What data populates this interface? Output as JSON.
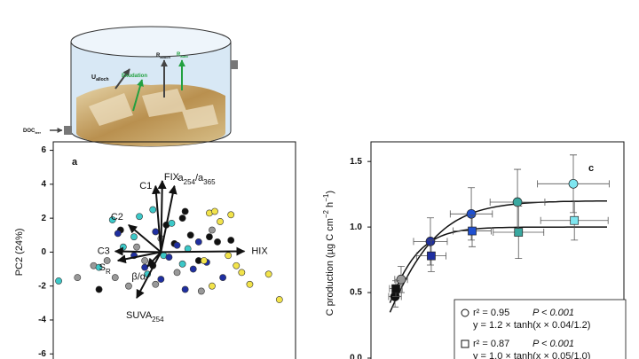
{
  "diagram": {
    "labels": [
      {
        "base": "U",
        "sub": "alloch"
      },
      {
        "base": "Exudation",
        "sub": ""
      },
      {
        "base": "R",
        "sub": "alloch"
      },
      {
        "base": "R",
        "sub": "auto"
      },
      {
        "base": "DOC",
        "sub": "terr"
      }
    ]
  },
  "chart_data": [
    {
      "type": "biplot",
      "panel": "a",
      "y_label": "PC2 (24%)",
      "xlim": [
        -4,
        5
      ],
      "ylim": [
        -6.3,
        6.5
      ],
      "yticks": [
        6,
        4,
        2,
        0,
        -2,
        -4,
        -6
      ],
      "series": [
        {
          "color": "#111111",
          "x": [
            0.8,
            1.1,
            -1.5,
            0.5,
            2.6,
            1.8,
            -0.3,
            0.2,
            1.4,
            -2.3,
            2.1,
            0.9
          ],
          "values": [
            2.0,
            1.0,
            1.3,
            0.5,
            0.7,
            0.9,
            -0.8,
            1.6,
            -0.5,
            -2.2,
            0.6,
            2.4
          ]
        },
        {
          "color": "#999999",
          "x": [
            -2.5,
            -1.7,
            -0.6,
            0.0,
            -1.2,
            1.5,
            -0.9,
            -2.0,
            0.6,
            -0.2,
            -3.1,
            1.9
          ],
          "values": [
            -0.8,
            -1.5,
            -0.5,
            0.8,
            -2.0,
            -2.3,
            0.3,
            -0.5,
            -1.2,
            -1.9,
            -1.5,
            1.3
          ]
        },
        {
          "color": "#3cc8c8",
          "x": [
            -0.3,
            -1.0,
            0.4,
            -1.4,
            -2.3,
            0.8,
            -0.5,
            -3.8,
            -1.8,
            0.1,
            1.0,
            -0.8
          ],
          "values": [
            2.5,
            0.9,
            1.7,
            0.3,
            -0.9,
            -0.7,
            -1.3,
            -1.7,
            1.9,
            -0.2,
            0.2,
            2.1
          ]
        },
        {
          "color": "#1f2fa0",
          "x": [
            -0.2,
            0.3,
            1.2,
            -1.0,
            0.6,
            -0.6,
            1.7,
            0.9,
            0.0,
            2.3,
            -1.6,
            1.4
          ],
          "values": [
            1.2,
            -0.3,
            -1.0,
            -0.2,
            0.4,
            -0.9,
            -0.6,
            -2.2,
            -1.6,
            -1.5,
            1.1,
            0.6
          ]
        },
        {
          "color": "#f2e34a",
          "x": [
            1.8,
            2.2,
            2.6,
            1.6,
            3.0,
            4.0,
            4.4,
            2.5,
            1.9,
            3.3,
            2.0,
            2.8
          ],
          "values": [
            2.3,
            1.8,
            2.2,
            -0.5,
            -1.2,
            -1.3,
            -2.8,
            -0.2,
            -2.0,
            -1.9,
            2.4,
            -0.8
          ]
        }
      ],
      "loadings": [
        {
          "label": [
            "HIX"
          ],
          "x": 3.1,
          "y": 0.05
        },
        {
          "label": [
            "FIX"
          ],
          "x": 0.05,
          "y": 4.2
        },
        {
          "label": [
            "a",
            "254",
            "/a",
            "365"
          ],
          "x": 0.5,
          "y": 3.9
        },
        {
          "label": [
            "C1"
          ],
          "x": -0.2,
          "y": 3.9
        },
        {
          "label": [
            "C2"
          ],
          "x": -1.2,
          "y": 1.6
        },
        {
          "label": [
            "C3"
          ],
          "x": -1.7,
          "y": 0.05
        },
        {
          "label": [
            "S",
            "R"
          ],
          "x": -1.6,
          "y": -0.5
        },
        {
          "label": [
            "β/α"
          ],
          "x": -0.5,
          "y": -0.85
        },
        {
          "label": [
            "SUVA",
            "254"
          ],
          "x": -0.9,
          "y": -2.7
        }
      ]
    },
    {
      "type": "scatter",
      "panel": "c",
      "y_label": [
        "C production (µg C cm",
        "−2",
        " h",
        "−1",
        ")"
      ],
      "xlim": [
        0,
        120
      ],
      "ylim": [
        0,
        1.65
      ],
      "yticks": [
        {
          "value": 0,
          "label": "0.0"
        },
        0.5,
        {
          "value": 1,
          "label": "1.0"
        },
        1.5
      ],
      "series": [
        {
          "marker": "circle",
          "x": [
            11.4,
            14.3,
            28.2,
            47.6,
            69.5,
            96
          ],
          "values": [
            0.47,
            0.6,
            0.89,
            1.1,
            1.19,
            1.33
          ],
          "yerr": [
            0.08,
            0.1,
            0.18,
            0.2,
            0.25,
            0.22
          ],
          "xerr": [
            3,
            3,
            8,
            10,
            13,
            17
          ],
          "colors": [
            "#111111",
            "#999999",
            "#1f2fa0",
            "#1f50d0",
            "#3aa8a0",
            "#7fe6f0"
          ],
          "fit": {
            "a": 1.2,
            "b": 0.04
          },
          "legend": [
            "r² = 0.95",
            "P < 0.001",
            "y = 1.2 × tanh(x × 0.04/1.2)"
          ]
        },
        {
          "marker": "square",
          "x": [
            11.8,
            28.6,
            48,
            70,
            96.5
          ],
          "values": [
            0.53,
            0.78,
            0.97,
            0.96,
            1.05
          ],
          "yerr": [
            0.06,
            0.12,
            0.12,
            0.2,
            0.15
          ],
          "xerr": [
            3,
            7,
            9,
            12,
            16
          ],
          "colors": [
            "#111111",
            "#1f2fa0",
            "#1f50d0",
            "#3aa8a0",
            "#7fe6f0"
          ],
          "fit": {
            "a": 1.0,
            "b": 0.05
          },
          "legend": [
            "r² = 0.87",
            "P < 0.001",
            "y = 1.0 × tanh(x × 0.05/1.0)"
          ]
        }
      ]
    }
  ]
}
